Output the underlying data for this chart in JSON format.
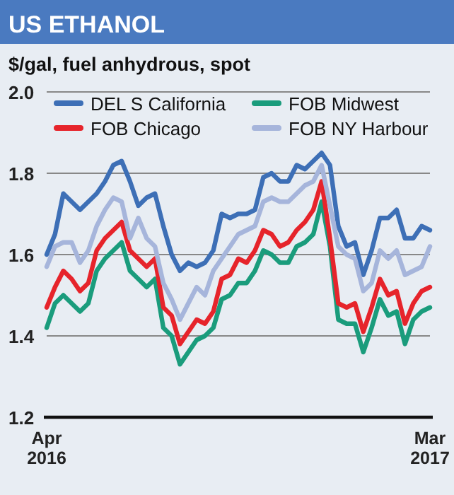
{
  "chart_data": {
    "type": "line",
    "title": "US ETHANOL",
    "subtitle": "$/gal, fuel anhydrous, spot",
    "categories": [
      "Apr 2016",
      null,
      null,
      null,
      null,
      null,
      null,
      null,
      null,
      null,
      null,
      null,
      null,
      null,
      null,
      null,
      null,
      null,
      null,
      null,
      null,
      null,
      null,
      null,
      null,
      null,
      null,
      null,
      null,
      null,
      null,
      null,
      null,
      null,
      null,
      null,
      null,
      null,
      null,
      null,
      null,
      null,
      null,
      null,
      null,
      null,
      "Mar 2017"
    ],
    "ylim": [
      1.2,
      2
    ],
    "yticks": [
      1.2,
      1.4,
      1.6,
      1.8,
      {
        "value": 2,
        "label": "2.0"
      }
    ],
    "grid": "y",
    "legend": "top",
    "line_style": "solid",
    "marker": "none",
    "series": [
      {
        "name": "DEL S California",
        "color": "#3d6fb6",
        "values": [
          1.6,
          1.65,
          1.75,
          1.73,
          1.71,
          1.73,
          1.75,
          1.78,
          1.82,
          1.83,
          1.78,
          1.72,
          1.74,
          1.75,
          1.67,
          1.6,
          1.56,
          1.58,
          1.57,
          1.58,
          1.61,
          1.7,
          1.69,
          1.7,
          1.7,
          1.71,
          1.79,
          1.8,
          1.78,
          1.78,
          1.82,
          1.81,
          1.83,
          1.85,
          1.82,
          1.67,
          1.62,
          1.63,
          1.55,
          1.61,
          1.69,
          1.69,
          1.71,
          1.64,
          1.64,
          1.67,
          1.66
        ]
      },
      {
        "name": "FOB Midwest",
        "color": "#1a9c7c",
        "values": [
          1.42,
          1.48,
          1.5,
          1.48,
          1.46,
          1.48,
          1.56,
          1.59,
          1.61,
          1.63,
          1.56,
          1.54,
          1.52,
          1.54,
          1.42,
          1.4,
          1.33,
          1.36,
          1.39,
          1.4,
          1.42,
          1.49,
          1.5,
          1.53,
          1.53,
          1.56,
          1.61,
          1.6,
          1.58,
          1.58,
          1.62,
          1.63,
          1.65,
          1.73,
          1.62,
          1.44,
          1.43,
          1.43,
          1.36,
          1.42,
          1.49,
          1.45,
          1.46,
          1.38,
          1.44,
          1.46,
          1.47
        ]
      },
      {
        "name": "FOB Chicago",
        "color": "#e6242b",
        "values": [
          1.47,
          1.52,
          1.56,
          1.54,
          1.51,
          1.53,
          1.61,
          1.64,
          1.66,
          1.68,
          1.61,
          1.59,
          1.57,
          1.59,
          1.47,
          1.45,
          1.38,
          1.41,
          1.44,
          1.43,
          1.46,
          1.54,
          1.55,
          1.59,
          1.58,
          1.61,
          1.66,
          1.65,
          1.62,
          1.63,
          1.66,
          1.68,
          1.71,
          1.78,
          1.64,
          1.48,
          1.47,
          1.48,
          1.41,
          1.47,
          1.54,
          1.5,
          1.51,
          1.43,
          1.48,
          1.51,
          1.52
        ]
      },
      {
        "name": "FOB NY Harbour",
        "color": "#a6b5db",
        "values": [
          1.57,
          1.62,
          1.63,
          1.63,
          1.58,
          1.61,
          1.67,
          1.71,
          1.74,
          1.73,
          1.64,
          1.69,
          1.64,
          1.62,
          1.53,
          1.49,
          1.44,
          1.48,
          1.52,
          1.5,
          1.56,
          1.59,
          1.62,
          1.65,
          1.66,
          1.67,
          1.73,
          1.74,
          1.73,
          1.73,
          1.75,
          1.77,
          1.78,
          1.82,
          1.72,
          1.62,
          1.6,
          1.59,
          1.51,
          1.53,
          1.61,
          1.59,
          1.61,
          1.55,
          1.56,
          1.57,
          1.62
        ]
      }
    ]
  }
}
